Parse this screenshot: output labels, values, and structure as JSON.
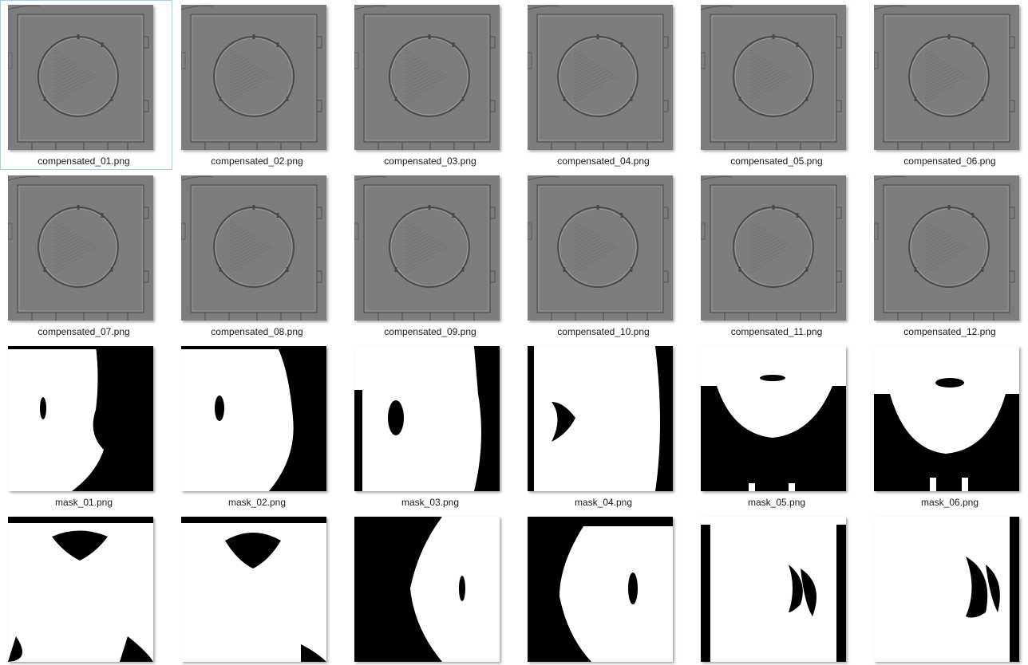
{
  "files": [
    {
      "name": "compensated_01.png",
      "kind": "compensated",
      "selected": true
    },
    {
      "name": "compensated_02.png",
      "kind": "compensated",
      "selected": false
    },
    {
      "name": "compensated_03.png",
      "kind": "compensated",
      "selected": false
    },
    {
      "name": "compensated_04.png",
      "kind": "compensated",
      "selected": false
    },
    {
      "name": "compensated_05.png",
      "kind": "compensated",
      "selected": false
    },
    {
      "name": "compensated_06.png",
      "kind": "compensated",
      "selected": false
    },
    {
      "name": "compensated_07.png",
      "kind": "compensated",
      "selected": false
    },
    {
      "name": "compensated_08.png",
      "kind": "compensated",
      "selected": false
    },
    {
      "name": "compensated_09.png",
      "kind": "compensated",
      "selected": false
    },
    {
      "name": "compensated_10.png",
      "kind": "compensated",
      "selected": false
    },
    {
      "name": "compensated_11.png",
      "kind": "compensated",
      "selected": false
    },
    {
      "name": "compensated_12.png",
      "kind": "compensated",
      "selected": false
    },
    {
      "name": "mask_01.png",
      "kind": "mask",
      "selected": false
    },
    {
      "name": "mask_02.png",
      "kind": "mask",
      "selected": false
    },
    {
      "name": "mask_03.png",
      "kind": "mask",
      "selected": false
    },
    {
      "name": "mask_04.png",
      "kind": "mask",
      "selected": false
    },
    {
      "name": "mask_05.png",
      "kind": "mask",
      "selected": false
    },
    {
      "name": "mask_06.png",
      "kind": "mask",
      "selected": false
    },
    {
      "name": "",
      "kind": "mask",
      "selected": false
    },
    {
      "name": "",
      "kind": "mask",
      "selected": false
    },
    {
      "name": "",
      "kind": "mask",
      "selected": false
    },
    {
      "name": "",
      "kind": "mask",
      "selected": false
    },
    {
      "name": "",
      "kind": "mask",
      "selected": false
    },
    {
      "name": "",
      "kind": "mask",
      "selected": false
    }
  ],
  "colors": {
    "compensated_bg": "#7d7d7d",
    "compensated_line": "#4a4a4a",
    "compensated_highlight": "#a0a0a0",
    "mask_black": "#000000",
    "mask_white": "#ffffff",
    "selection_border": "#99d1ff",
    "label_text": "#1a1a1a"
  }
}
